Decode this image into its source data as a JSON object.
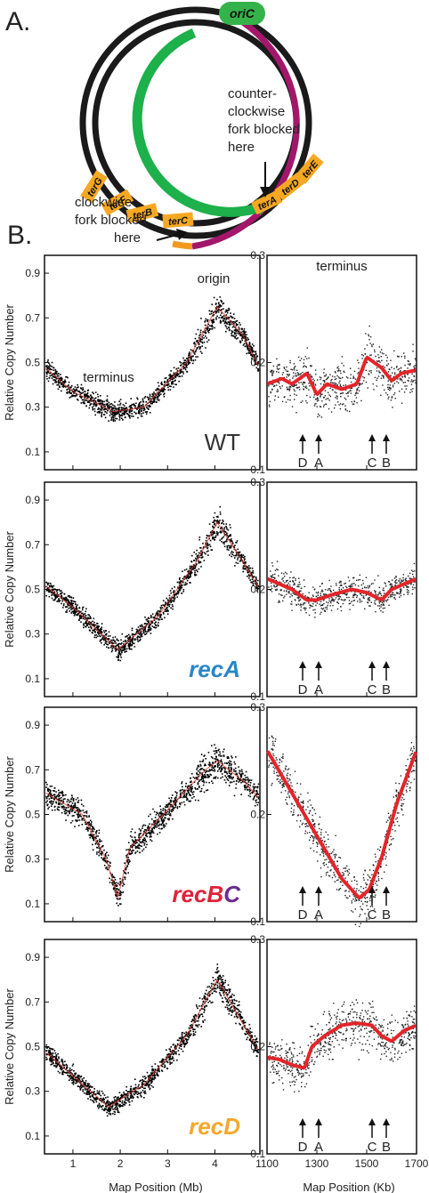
{
  "panel_labels": {
    "a": "A.",
    "b": "B."
  },
  "diagram": {
    "origin_label": "oriC",
    "ccw_note": [
      "counter-",
      "clockwise",
      "fork blocked",
      "here"
    ],
    "cw_note": [
      "clockwise",
      "fork blocked",
      "here"
    ],
    "ter_left": [
      "terG",
      "terF",
      "terB",
      "terC"
    ],
    "ter_right": [
      "terA",
      "terD",
      "terE"
    ],
    "colors": {
      "ring": "#1a1a1a",
      "green": "#1db04b",
      "magenta": "#a3176b",
      "ter": "#f7a823",
      "orange_arc": "#f29a1f"
    }
  },
  "axes": {
    "ylabel": "Relative Copy Number",
    "left_xlabel": "Map Position (Mb)",
    "right_xlabel": "Map Position (Kb)",
    "left_yticks": [
      "0.9",
      "0.7",
      "0.5",
      "0.3",
      "0.1"
    ],
    "right_yticks": [
      "0.3",
      "0.2",
      "0.1"
    ],
    "left_xticks": [
      "1",
      "2",
      "3",
      "4"
    ],
    "right_xticks": [
      "1100",
      "1300",
      "1500",
      "1700"
    ],
    "site_letters": [
      "D",
      "A",
      "C",
      "B"
    ]
  },
  "annotations": {
    "terminus_left": "terminus",
    "origin": "origin",
    "terminus_right": "terminus"
  },
  "strains": [
    {
      "label": "WT",
      "color": "#333333",
      "label_parts": []
    },
    {
      "label": "recA",
      "color": "#2b86c5",
      "label_parts": []
    },
    {
      "label": "recBC",
      "color": "",
      "label_parts": [
        {
          "text": "recB",
          "color": "#e0233a"
        },
        {
          "text": "C",
          "color": "#6b2b8f"
        }
      ]
    },
    {
      "label": "recD",
      "color": "#f6a72b",
      "label_parts": []
    }
  ],
  "chart_data": [
    {
      "type": "scatter",
      "strain": "WT",
      "region": "whole genome",
      "x_unit": "Mb",
      "xlim": [
        0.4,
        4.95
      ],
      "ylim": [
        0.02,
        0.98
      ],
      "x": [
        0.4,
        1.0,
        1.85,
        2.5,
        3.4,
        4.05,
        4.6,
        4.95
      ],
      "y": [
        0.48,
        0.37,
        0.28,
        0.3,
        0.5,
        0.75,
        0.62,
        0.47
      ]
    },
    {
      "type": "scatter",
      "strain": "WT",
      "region": "terminus",
      "x_unit": "Kb",
      "xlim": [
        1100,
        1700
      ],
      "ylim": [
        0.1,
        0.3
      ],
      "x": [
        1100,
        1160,
        1200,
        1260,
        1300,
        1340,
        1400,
        1460,
        1500,
        1560,
        1600,
        1640,
        1700
      ],
      "y": [
        0.18,
        0.185,
        0.18,
        0.19,
        0.17,
        0.18,
        0.175,
        0.18,
        0.205,
        0.195,
        0.183,
        0.19,
        0.193
      ]
    },
    {
      "type": "scatter",
      "strain": "recA",
      "region": "whole genome",
      "x_unit": "Mb",
      "xlim": [
        0.4,
        4.95
      ],
      "ylim": [
        0.02,
        0.98
      ],
      "x": [
        0.4,
        1.0,
        1.95,
        2.8,
        3.6,
        4.05,
        4.6,
        4.95
      ],
      "y": [
        0.52,
        0.42,
        0.23,
        0.38,
        0.62,
        0.8,
        0.62,
        0.5
      ]
    },
    {
      "type": "scatter",
      "strain": "recA",
      "region": "terminus",
      "x_unit": "Kb",
      "xlim": [
        1100,
        1700
      ],
      "ylim": [
        0.1,
        0.3
      ],
      "x": [
        1100,
        1200,
        1260,
        1300,
        1360,
        1440,
        1500,
        1560,
        1600,
        1700
      ],
      "y": [
        0.21,
        0.2,
        0.19,
        0.19,
        0.195,
        0.2,
        0.197,
        0.19,
        0.2,
        0.21
      ]
    },
    {
      "type": "scatter",
      "strain": "recBC",
      "region": "whole genome",
      "x_unit": "Mb",
      "xlim": [
        0.4,
        4.95
      ],
      "ylim": [
        0.02,
        0.98
      ],
      "x": [
        0.4,
        1.2,
        1.7,
        1.95,
        2.2,
        3.0,
        3.8,
        4.05,
        4.6,
        4.95
      ],
      "y": [
        0.6,
        0.5,
        0.3,
        0.13,
        0.35,
        0.52,
        0.7,
        0.74,
        0.65,
        0.57
      ]
    },
    {
      "type": "scatter",
      "strain": "recBC",
      "region": "terminus",
      "x_unit": "Kb",
      "xlim": [
        1100,
        1700
      ],
      "ylim": [
        0.1,
        0.3
      ],
      "x": [
        1100,
        1200,
        1300,
        1400,
        1470,
        1510,
        1560,
        1620,
        1700
      ],
      "y": [
        0.26,
        0.22,
        0.18,
        0.14,
        0.122,
        0.13,
        0.16,
        0.21,
        0.26
      ]
    },
    {
      "type": "scatter",
      "strain": "recD",
      "region": "whole genome",
      "x_unit": "Mb",
      "xlim": [
        0.4,
        4.95
      ],
      "ylim": [
        0.02,
        0.98
      ],
      "x": [
        0.4,
        1.0,
        1.75,
        2.5,
        3.4,
        4.05,
        4.6,
        4.95
      ],
      "y": [
        0.48,
        0.37,
        0.23,
        0.33,
        0.55,
        0.8,
        0.6,
        0.47
      ]
    },
    {
      "type": "scatter",
      "strain": "recD",
      "region": "terminus",
      "x_unit": "Kb",
      "xlim": [
        1100,
        1700
      ],
      "ylim": [
        0.1,
        0.3
      ],
      "x": [
        1100,
        1150,
        1200,
        1250,
        1280,
        1330,
        1400,
        1460,
        1520,
        1560,
        1600,
        1650,
        1700
      ],
      "y": [
        0.19,
        0.188,
        0.183,
        0.18,
        0.2,
        0.21,
        0.22,
        0.222,
        0.22,
        0.21,
        0.205,
        0.215,
        0.22
      ]
    }
  ]
}
